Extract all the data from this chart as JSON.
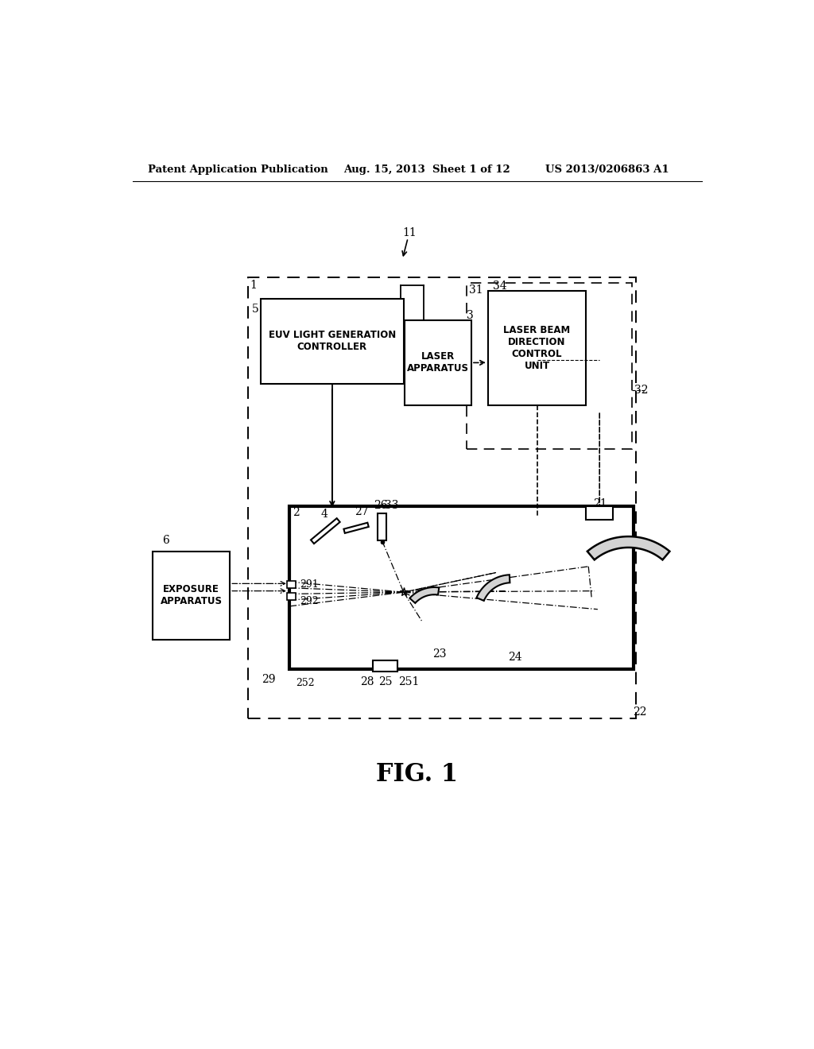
{
  "bg_color": "#ffffff",
  "text_color": "#000000",
  "header_left": "Patent Application Publication",
  "header_center": "Aug. 15, 2013  Sheet 1 of 12",
  "header_right": "US 2013/0206863 A1",
  "figure_label": "FIG. 1"
}
